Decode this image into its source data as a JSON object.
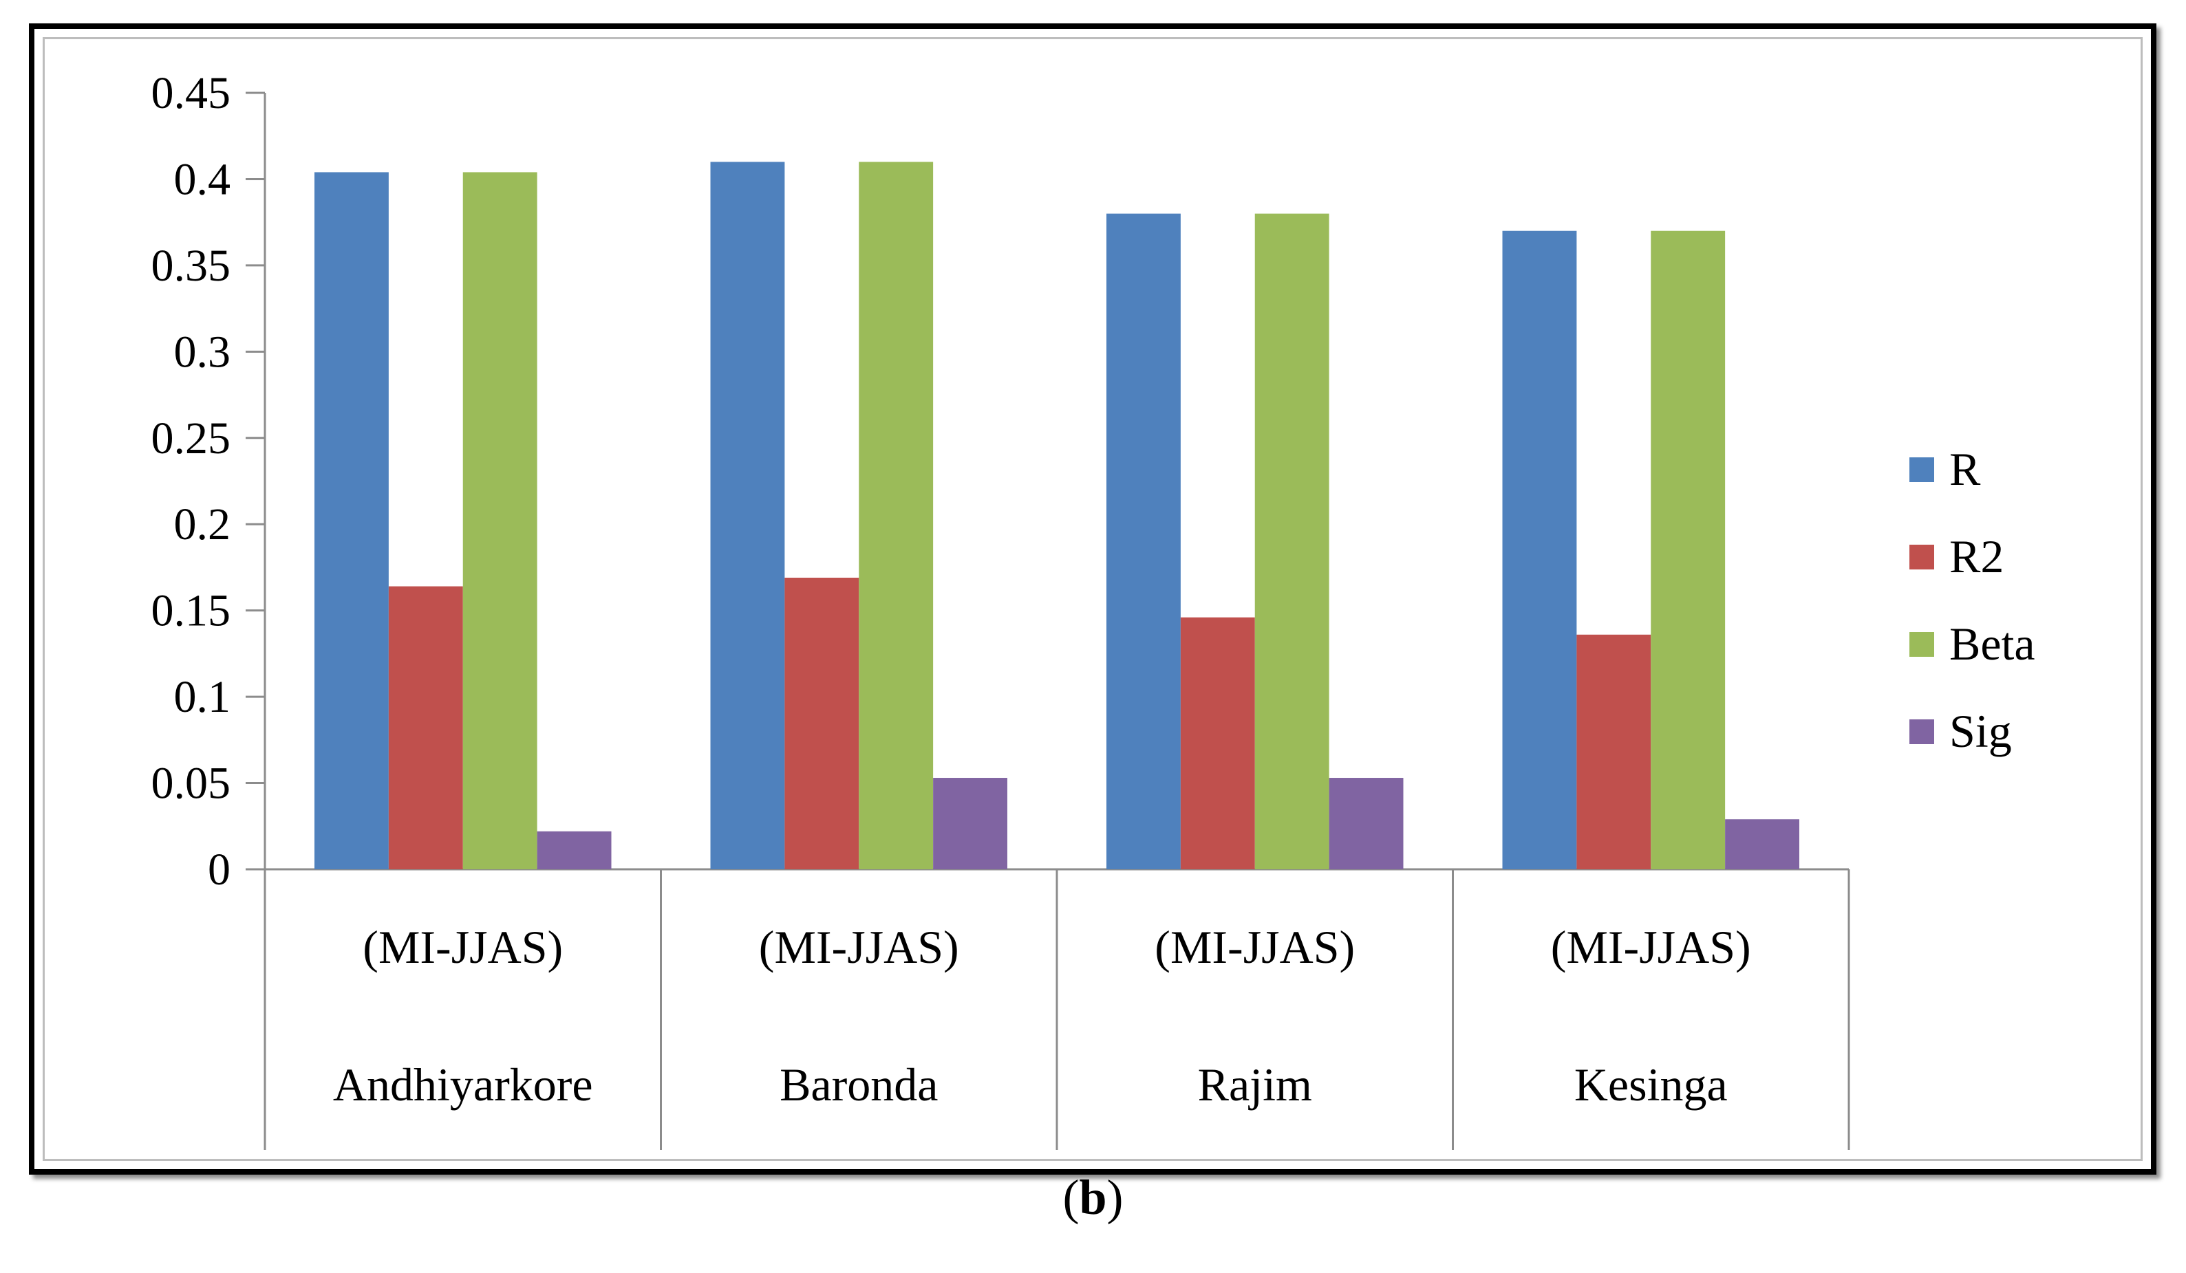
{
  "caption": {
    "open": "(",
    "letter": "b",
    "close": ")"
  },
  "chart_data": {
    "type": "bar",
    "title": "",
    "xlabel": "",
    "ylabel": "",
    "ylim": [
      0,
      0.45
    ],
    "yticks": [
      "0",
      "0.05",
      "0.1",
      "0.15",
      "0.2",
      "0.25",
      "0.3",
      "0.35",
      "0.4",
      "0.45"
    ],
    "grid": false,
    "legend": "right",
    "categories": [
      {
        "line1": "(MI-JJAS)",
        "line2": "Andhiyarkore"
      },
      {
        "line1": "(MI-JJAS)",
        "line2": "Baronda"
      },
      {
        "line1": "(MI-JJAS)",
        "line2": "Rajim"
      },
      {
        "line1": "(MI-JJAS)",
        "line2": "Kesinga"
      }
    ],
    "series": [
      {
        "name": "R",
        "color": "#4F81BD",
        "values": [
          0.404,
          0.41,
          0.38,
          0.37
        ]
      },
      {
        "name": "R2",
        "color": "#C0504D",
        "values": [
          0.164,
          0.169,
          0.146,
          0.136
        ]
      },
      {
        "name": "Beta",
        "color": "#9BBB59",
        "values": [
          0.404,
          0.41,
          0.38,
          0.37
        ]
      },
      {
        "name": "Sig",
        "color": "#8064A2",
        "values": [
          0.022,
          0.053,
          0.053,
          0.029
        ]
      }
    ]
  }
}
